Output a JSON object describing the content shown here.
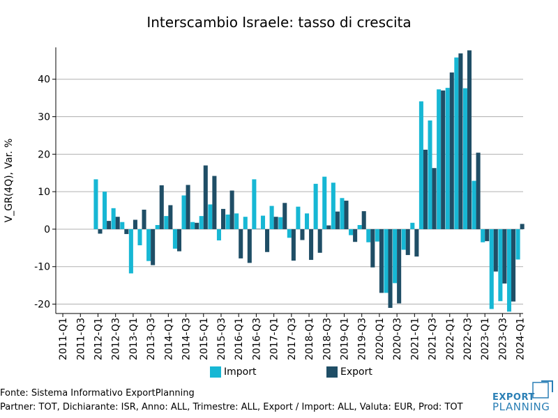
{
  "colors": {
    "import": "#17b7d4",
    "export": "#1f4e66",
    "grid": "#b0b0b0",
    "logo": "#2a7fb5"
  },
  "chart_data": {
    "type": "bar",
    "title": "Interscambio Israele: tasso di crescita",
    "ylabel": "V_GR(4Q), Var. %",
    "xlabel": "",
    "ylim": [
      -22.5,
      48.5
    ],
    "yticks": [
      -20,
      -10,
      0,
      10,
      20,
      30,
      40
    ],
    "ytick_labels": [
      "-20",
      "-10",
      "0",
      "10",
      "20",
      "30",
      "40"
    ],
    "xtick_labels": [
      "2011-Q1",
      "2011-Q3",
      "2012-Q1",
      "2012-Q3",
      "2013-Q1",
      "2013-Q3",
      "2014-Q1",
      "2014-Q3",
      "2015-Q1",
      "2015-Q3",
      "2016-Q1",
      "2016-Q3",
      "2017-Q1",
      "2017-Q3",
      "2018-Q1",
      "2018-Q3",
      "2019-Q1",
      "2019-Q3",
      "2020-Q1",
      "2020-Q3",
      "2021-Q1",
      "2021-Q3",
      "2022-Q1",
      "2022-Q3",
      "2023-Q1",
      "2023-Q3",
      "2024-Q1"
    ],
    "categories": [
      "2011-Q1",
      "2011-Q2",
      "2011-Q3",
      "2011-Q4",
      "2012-Q1",
      "2012-Q2",
      "2012-Q3",
      "2012-Q4",
      "2013-Q1",
      "2013-Q2",
      "2013-Q3",
      "2013-Q4",
      "2014-Q1",
      "2014-Q2",
      "2014-Q3",
      "2014-Q4",
      "2015-Q1",
      "2015-Q2",
      "2015-Q3",
      "2015-Q4",
      "2016-Q1",
      "2016-Q2",
      "2016-Q3",
      "2016-Q4",
      "2017-Q1",
      "2017-Q2",
      "2017-Q3",
      "2017-Q4",
      "2018-Q1",
      "2018-Q2",
      "2018-Q3",
      "2018-Q4",
      "2019-Q1",
      "2019-Q2",
      "2019-Q3",
      "2019-Q4",
      "2020-Q1",
      "2020-Q2",
      "2020-Q3",
      "2020-Q4",
      "2021-Q1",
      "2021-Q2",
      "2021-Q3",
      "2021-Q4",
      "2022-Q1",
      "2022-Q2",
      "2022-Q3",
      "2022-Q4",
      "2023-Q1",
      "2023-Q2",
      "2023-Q3",
      "2023-Q4",
      "2024-Q1"
    ],
    "series": [
      {
        "name": "Import",
        "values": [
          null,
          null,
          null,
          null,
          13.3,
          10.0,
          5.6,
          1.9,
          -11.8,
          -4.3,
          -8.5,
          1.1,
          3.5,
          -5.2,
          9.0,
          1.9,
          3.5,
          6.6,
          -3.0,
          3.9,
          4.2,
          3.3,
          13.3,
          3.6,
          6.2,
          3.2,
          -2.3,
          6.0,
          4.2,
          12.1,
          14.0,
          12.4,
          8.3,
          -1.6,
          1.1,
          -3.5,
          -3.3,
          -17.0,
          -14.4,
          -5.5,
          1.7,
          34.1,
          29.0,
          37.3,
          37.7,
          45.8,
          37.6,
          12.9,
          -3.5,
          -21.3,
          -19.2,
          -22.0,
          -8.1
        ]
      },
      {
        "name": "Export",
        "values": [
          null,
          null,
          null,
          null,
          -1.2,
          2.2,
          3.3,
          -1.3,
          2.5,
          5.2,
          -9.6,
          11.7,
          6.4,
          -5.9,
          11.8,
          1.7,
          17.0,
          14.2,
          5.4,
          10.3,
          -7.8,
          -9.0,
          0.1,
          -6.1,
          3.3,
          7.0,
          -8.4,
          -2.9,
          -8.2,
          -6.3,
          1.0,
          4.7,
          7.6,
          -3.4,
          4.8,
          -10.2,
          -17.0,
          -21.0,
          -19.8,
          -6.9,
          -7.3,
          21.2,
          16.3,
          37.0,
          41.8,
          46.9,
          47.7,
          20.4,
          -3.2,
          -11.3,
          -14.5,
          -19.3,
          1.4
        ]
      }
    ],
    "legend": "bottom-center"
  },
  "footer": {
    "source": "Fonte: Sistema Informativo ExportPlanning",
    "params": "Partner: TOT, Dichiarante: ISR, Anno: ALL, Trimestre: ALL, Export / Import: ALL, Valuta: EUR, Prod: TOT"
  },
  "logo": {
    "line1": "EXPORT",
    "line2": "PLANNING"
  }
}
